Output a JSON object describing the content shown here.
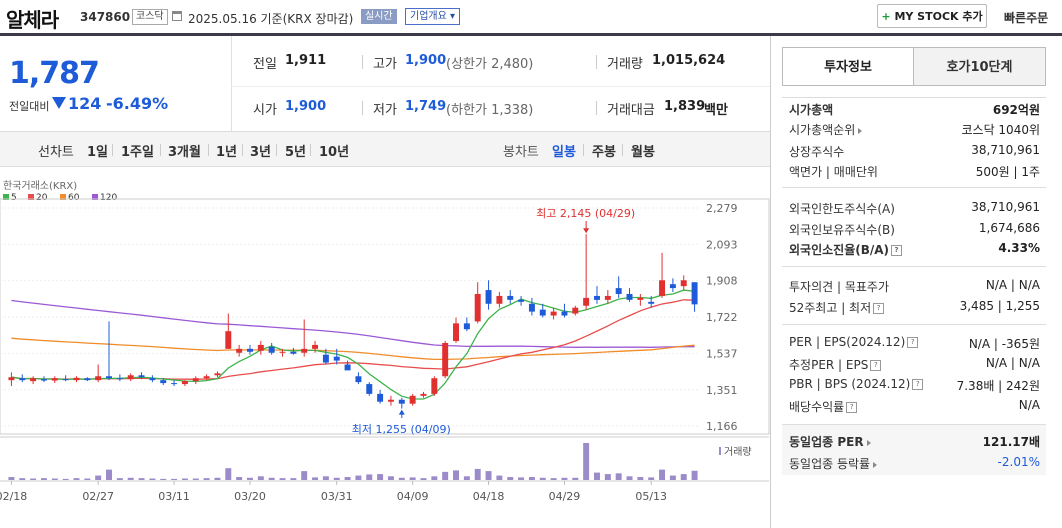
{
  "header": {
    "stock_name": "알체라",
    "stock_code": "347860",
    "market": "코스닥",
    "date_text": "2025.05.16  기준(KRX 장마감)",
    "live_label": "실시간",
    "overview_label": "기업개요 ▾",
    "mystock_plus": "+",
    "mystock_label": "MY STOCK 추가",
    "quick_order": "빠른주문"
  },
  "price": {
    "current": "1,787",
    "change_label": "전일대비",
    "change": "124",
    "change_pct": "-6.49%"
  },
  "info": {
    "prev_close_label": "전일",
    "prev_close": "1,911",
    "high_label": "고가",
    "high": "1,900",
    "upper_limit": "(상한가 2,480)",
    "volume_label": "거래량",
    "volume": "1,015,624",
    "open_label": "시가",
    "open": "1,900",
    "low_label": "저가",
    "low": "1,749",
    "lower_limit": "(하한가 1,338)",
    "amount_label": "거래대금",
    "amount": "1,839",
    "amount_unit": "백만"
  },
  "chart_tabs": {
    "line_label": "선차트",
    "periods": [
      "1일",
      "1주일",
      "3개월",
      "1년",
      "3년",
      "5년",
      "10년"
    ],
    "candle_label": "봉차트",
    "candles": [
      "일봉",
      "주봉",
      "월봉"
    ]
  },
  "right_panel": {
    "tabs": [
      "투자정보",
      "호가10단계"
    ],
    "rows": [
      {
        "label": "시가총액",
        "value": "692억원"
      },
      {
        "label": "시가총액순위",
        "value": "코스닥 1040위"
      },
      {
        "label": "상장주식수",
        "value": "38,710,961"
      },
      {
        "label": "액면가 | 매매단위",
        "value": "500원 | 1주"
      },
      {
        "label": "외국인한도주식수(A)",
        "value": "38,710,961"
      },
      {
        "label": "외국인보유주식수(B)",
        "value": "1,674,686"
      },
      {
        "label": "외국인소진율(B/A)",
        "value": "4.33%"
      },
      {
        "label": "투자의견 | 목표주가",
        "value": "N/A | N/A"
      },
      {
        "label": "52주최고 | 최저",
        "value": "3,485 | 1,255"
      },
      {
        "label": "PER | EPS(2024.12)",
        "value": "N/A | -365원"
      },
      {
        "label": "추정PER | EPS",
        "value": "N/A | N/A"
      },
      {
        "label": "PBR | BPS (2024.12)",
        "value": "7.38배 | 242원"
      },
      {
        "label": "배당수익률",
        "value": "N/A"
      },
      {
        "label": "동일업종 PER",
        "value": "121.17배"
      },
      {
        "label": "동일업종 등락률",
        "value": "-2.01%"
      }
    ]
  },
  "colors": {
    "up": "#e03030",
    "down": "#1e5bd8",
    "ma5": "#3cb44b",
    "ma20": "#e84d4d",
    "ma60": "#f08c2a",
    "ma120": "#9b59d6",
    "volume": "#9b8bc9"
  },
  "chart_data": {
    "type": "candlestick",
    "source_label": "한국거래소(KRX)",
    "legend": [
      {
        "name": "5"
      },
      {
        "name": "20"
      },
      {
        "name": "60"
      },
      {
        "name": "120"
      }
    ],
    "y_ticks": [
      "2,279",
      "2,093",
      "1,908",
      "1,722",
      "1,537",
      "1,351",
      "1,166"
    ],
    "ylim": [
      1166,
      2279
    ],
    "x_ticks": [
      "02/18",
      "02/27",
      "03/11",
      "03/20",
      "03/31",
      "04/09",
      "04/18",
      "04/29",
      "05/13"
    ],
    "volume_label": "거래량",
    "max_annotation": "최고 2,145 (04/29)",
    "min_annotation": "최저 1,255 (04/09)",
    "candles": [
      {
        "o": 1400,
        "h": 1440,
        "l": 1370,
        "c": 1415
      },
      {
        "o": 1410,
        "h": 1430,
        "l": 1390,
        "c": 1400
      },
      {
        "o": 1395,
        "h": 1420,
        "l": 1380,
        "c": 1410
      },
      {
        "o": 1405,
        "h": 1420,
        "l": 1390,
        "c": 1398
      },
      {
        "o": 1398,
        "h": 1420,
        "l": 1385,
        "c": 1410
      },
      {
        "o": 1405,
        "h": 1425,
        "l": 1395,
        "c": 1400
      },
      {
        "o": 1400,
        "h": 1420,
        "l": 1390,
        "c": 1412
      },
      {
        "o": 1410,
        "h": 1415,
        "l": 1395,
        "c": 1400
      },
      {
        "o": 1400,
        "h": 1480,
        "l": 1390,
        "c": 1420
      },
      {
        "o": 1420,
        "h": 1700,
        "l": 1400,
        "c": 1410
      },
      {
        "o": 1410,
        "h": 1430,
        "l": 1395,
        "c": 1405
      },
      {
        "o": 1405,
        "h": 1435,
        "l": 1395,
        "c": 1425
      },
      {
        "o": 1425,
        "h": 1440,
        "l": 1405,
        "c": 1415
      },
      {
        "o": 1410,
        "h": 1425,
        "l": 1390,
        "c": 1400
      },
      {
        "o": 1400,
        "h": 1410,
        "l": 1375,
        "c": 1385
      },
      {
        "o": 1385,
        "h": 1400,
        "l": 1370,
        "c": 1380
      },
      {
        "o": 1380,
        "h": 1400,
        "l": 1370,
        "c": 1395
      },
      {
        "o": 1395,
        "h": 1420,
        "l": 1380,
        "c": 1410
      },
      {
        "o": 1410,
        "h": 1430,
        "l": 1400,
        "c": 1420
      },
      {
        "o": 1425,
        "h": 1445,
        "l": 1415,
        "c": 1435
      },
      {
        "o": 1560,
        "h": 1740,
        "l": 1560,
        "c": 1650
      },
      {
        "o": 1540,
        "h": 1580,
        "l": 1520,
        "c": 1560
      },
      {
        "o": 1560,
        "h": 1580,
        "l": 1530,
        "c": 1545
      },
      {
        "o": 1550,
        "h": 1600,
        "l": 1530,
        "c": 1580
      },
      {
        "o": 1570,
        "h": 1590,
        "l": 1530,
        "c": 1540
      },
      {
        "o": 1540,
        "h": 1560,
        "l": 1520,
        "c": 1545
      },
      {
        "o": 1545,
        "h": 1565,
        "l": 1530,
        "c": 1535
      },
      {
        "o": 1540,
        "h": 1710,
        "l": 1520,
        "c": 1560
      },
      {
        "o": 1560,
        "h": 1600,
        "l": 1540,
        "c": 1580
      },
      {
        "o": 1530,
        "h": 1560,
        "l": 1480,
        "c": 1490
      },
      {
        "o": 1520,
        "h": 1560,
        "l": 1480,
        "c": 1500
      },
      {
        "o": 1480,
        "h": 1500,
        "l": 1460,
        "c": 1450
      },
      {
        "o": 1420,
        "h": 1440,
        "l": 1380,
        "c": 1390
      },
      {
        "o": 1380,
        "h": 1390,
        "l": 1320,
        "c": 1330
      },
      {
        "o": 1330,
        "h": 1350,
        "l": 1280,
        "c": 1290
      },
      {
        "o": 1290,
        "h": 1320,
        "l": 1270,
        "c": 1300
      },
      {
        "o": 1300,
        "h": 1310,
        "l": 1255,
        "c": 1280
      },
      {
        "o": 1280,
        "h": 1330,
        "l": 1270,
        "c": 1320
      },
      {
        "o": 1320,
        "h": 1340,
        "l": 1310,
        "c": 1330
      },
      {
        "o": 1330,
        "h": 1420,
        "l": 1320,
        "c": 1410
      },
      {
        "o": 1420,
        "h": 1600,
        "l": 1410,
        "c": 1590
      },
      {
        "o": 1600,
        "h": 1720,
        "l": 1590,
        "c": 1690
      },
      {
        "o": 1690,
        "h": 1720,
        "l": 1650,
        "c": 1660
      },
      {
        "o": 1700,
        "h": 1900,
        "l": 1690,
        "c": 1840
      },
      {
        "o": 1860,
        "h": 1910,
        "l": 1760,
        "c": 1790
      },
      {
        "o": 1790,
        "h": 1850,
        "l": 1770,
        "c": 1830
      },
      {
        "o": 1830,
        "h": 1860,
        "l": 1790,
        "c": 1810
      },
      {
        "o": 1810,
        "h": 1830,
        "l": 1780,
        "c": 1800
      },
      {
        "o": 1790,
        "h": 1820,
        "l": 1730,
        "c": 1750
      },
      {
        "o": 1760,
        "h": 1790,
        "l": 1720,
        "c": 1730
      },
      {
        "o": 1730,
        "h": 1770,
        "l": 1710,
        "c": 1750
      },
      {
        "o": 1750,
        "h": 1790,
        "l": 1720,
        "c": 1730
      },
      {
        "o": 1740,
        "h": 1780,
        "l": 1730,
        "c": 1770
      },
      {
        "o": 1780,
        "h": 2145,
        "l": 1760,
        "c": 1820
      },
      {
        "o": 1830,
        "h": 1880,
        "l": 1790,
        "c": 1810
      },
      {
        "o": 1810,
        "h": 1860,
        "l": 1790,
        "c": 1830
      },
      {
        "o": 1870,
        "h": 1930,
        "l": 1820,
        "c": 1840
      },
      {
        "o": 1840,
        "h": 1870,
        "l": 1800,
        "c": 1810
      },
      {
        "o": 1810,
        "h": 1840,
        "l": 1780,
        "c": 1820
      },
      {
        "o": 1800,
        "h": 1830,
        "l": 1770,
        "c": 1790
      },
      {
        "o": 1830,
        "h": 2050,
        "l": 1820,
        "c": 1910
      },
      {
        "o": 1890,
        "h": 1920,
        "l": 1850,
        "c": 1870
      },
      {
        "o": 1880,
        "h": 1935,
        "l": 1860,
        "c": 1910
      },
      {
        "o": 1900,
        "h": 1900,
        "l": 1749,
        "c": 1787
      }
    ],
    "volumes": [
      0.08,
      0.05,
      0.04,
      0.05,
      0.04,
      0.03,
      0.05,
      0.04,
      0.12,
      0.28,
      0.05,
      0.06,
      0.05,
      0.04,
      0.03,
      0.03,
      0.04,
      0.04,
      0.05,
      0.06,
      0.32,
      0.08,
      0.06,
      0.1,
      0.06,
      0.05,
      0.05,
      0.24,
      0.07,
      0.1,
      0.06,
      0.08,
      0.12,
      0.15,
      0.16,
      0.1,
      0.06,
      0.07,
      0.05,
      0.1,
      0.22,
      0.26,
      0.1,
      0.3,
      0.24,
      0.12,
      0.08,
      0.07,
      0.08,
      0.06,
      0.05,
      0.06,
      0.06,
      1.0,
      0.2,
      0.16,
      0.18,
      0.1,
      0.08,
      0.07,
      0.28,
      0.12,
      0.16,
      0.25
    ]
  }
}
